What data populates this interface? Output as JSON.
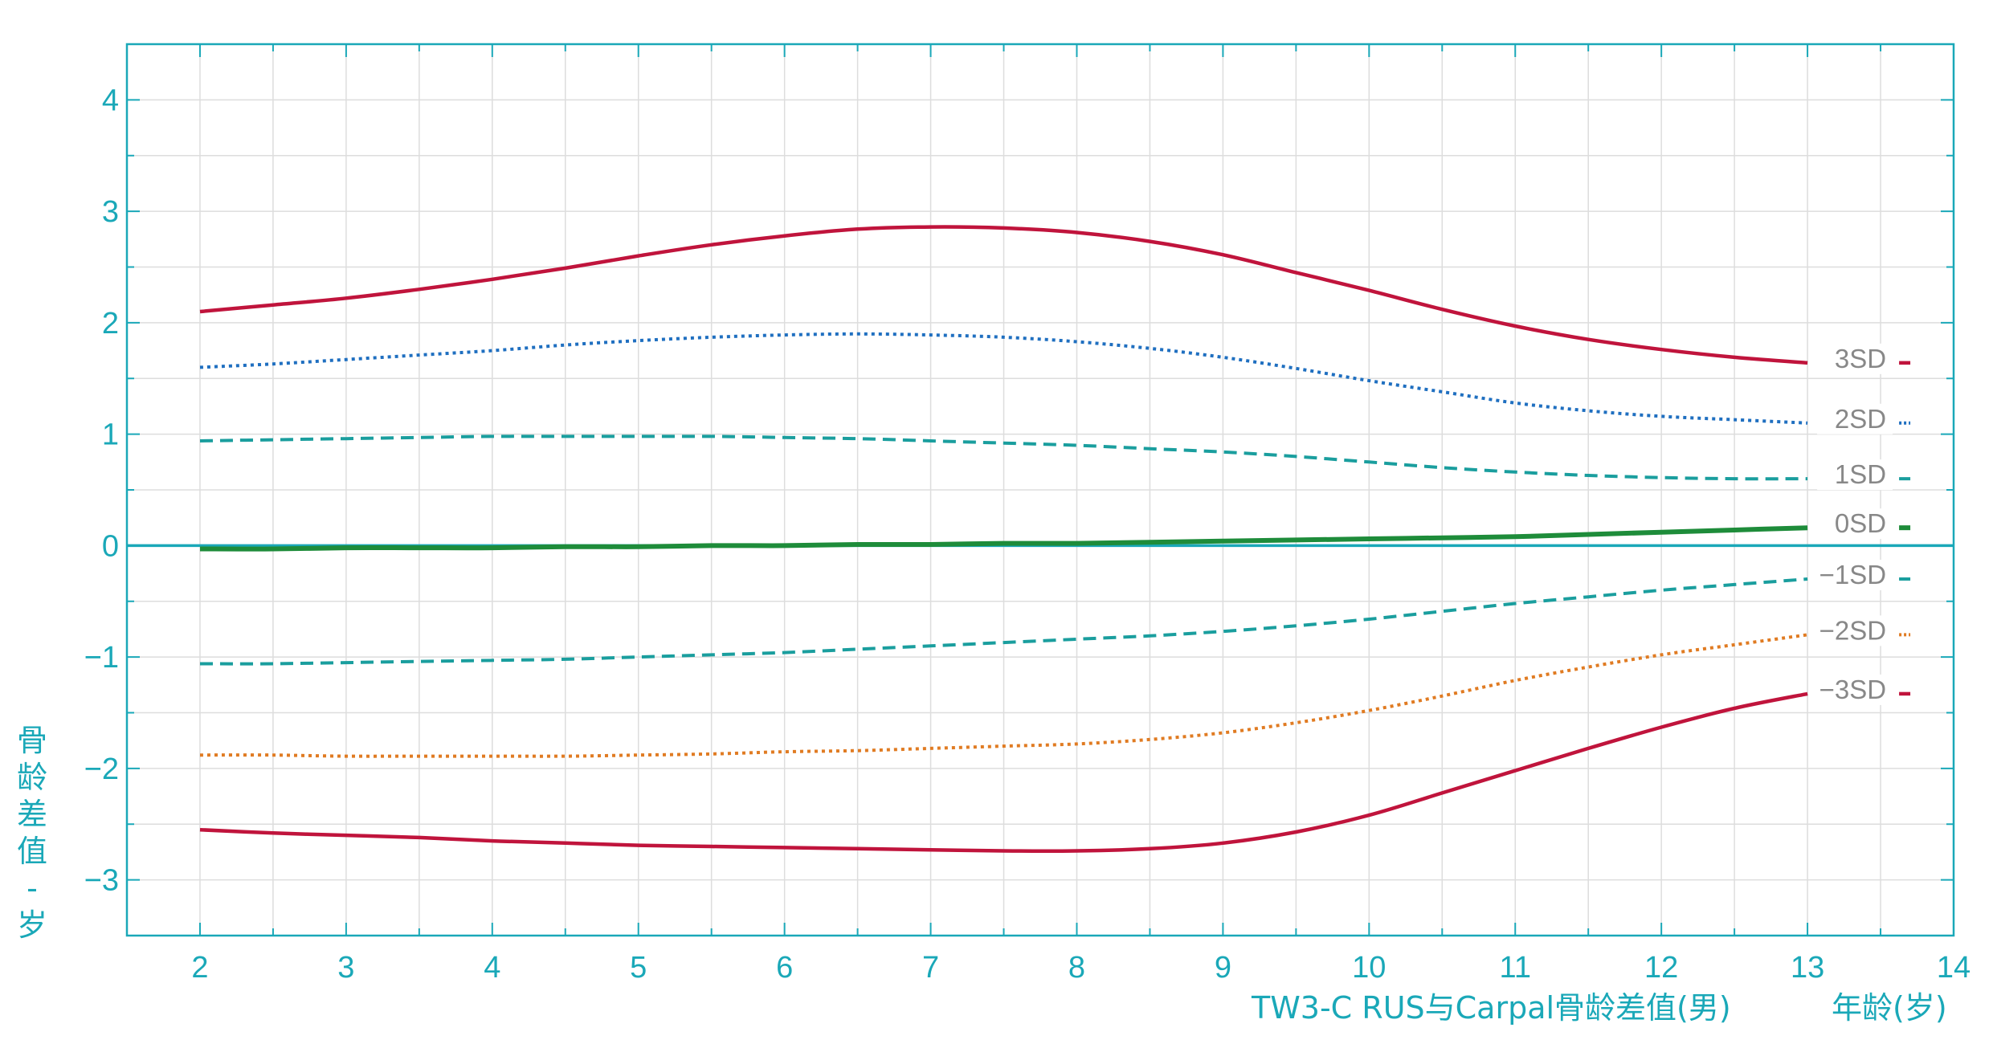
{
  "colors": {
    "axis": "#1aa8b8",
    "grid": "#dddddd",
    "zero_line": "#1aa8b8",
    "sd_label": "#888888",
    "sd3": "#c0143c",
    "sd2_upper": "#1f6fc0",
    "sd1": "#1a9e9e",
    "sd0": "#1e8c3a",
    "sd2_lower": "#e07b22"
  },
  "captions": {
    "title": "TW3-C RUS与Carpal骨龄差值(男)",
    "xlabel": "年龄(岁)",
    "ylabel_chars": [
      "骨",
      "龄",
      "差",
      "值",
      "-",
      "岁"
    ]
  },
  "chart_data": {
    "type": "line",
    "title": "TW3-C RUS与Carpal骨龄差值(男)",
    "xlabel": "年龄(岁)",
    "ylabel": "骨龄差值 - 岁",
    "xlim": [
      1.5,
      14
    ],
    "ylim": [
      -3.5,
      4.5
    ],
    "x_ticks": [
      2,
      3,
      4,
      5,
      6,
      7,
      8,
      9,
      10,
      11,
      12,
      13,
      14
    ],
    "y_ticks": [
      4,
      3,
      2,
      1,
      0,
      -1,
      -2,
      -3
    ],
    "y_tick_labels": [
      "4",
      "3",
      "2",
      "1",
      "0",
      "−1",
      "−2",
      "−3"
    ],
    "grid": true,
    "legend_position": "right-end",
    "x": [
      2,
      2.5,
      3,
      3.5,
      4,
      4.5,
      5,
      5.5,
      6,
      6.5,
      7,
      7.5,
      8,
      8.5,
      9,
      9.5,
      10,
      10.5,
      11,
      11.5,
      12,
      12.5,
      13
    ],
    "series": [
      {
        "name": "3SD",
        "label": "3SD",
        "color_key": "sd3",
        "dash": "solid",
        "width": 4.5,
        "values": [
          2.1,
          2.16,
          2.22,
          2.3,
          2.39,
          2.49,
          2.6,
          2.7,
          2.78,
          2.84,
          2.86,
          2.85,
          2.81,
          2.73,
          2.61,
          2.45,
          2.29,
          2.12,
          1.97,
          1.85,
          1.76,
          1.69,
          1.64
        ]
      },
      {
        "name": "2SD",
        "label": "2SD",
        "color_key": "sd2_upper",
        "dash": "dotted",
        "width": 4,
        "values": [
          1.6,
          1.63,
          1.67,
          1.71,
          1.75,
          1.8,
          1.84,
          1.87,
          1.89,
          1.9,
          1.89,
          1.87,
          1.83,
          1.77,
          1.69,
          1.59,
          1.48,
          1.38,
          1.28,
          1.21,
          1.16,
          1.13,
          1.1
        ]
      },
      {
        "name": "1SD",
        "label": "1SD",
        "color_key": "sd1",
        "dash": "dashed",
        "width": 4,
        "values": [
          0.94,
          0.95,
          0.96,
          0.97,
          0.98,
          0.98,
          0.98,
          0.98,
          0.97,
          0.96,
          0.94,
          0.92,
          0.9,
          0.87,
          0.84,
          0.8,
          0.75,
          0.7,
          0.66,
          0.63,
          0.61,
          0.6,
          0.6
        ]
      },
      {
        "name": "0SD",
        "label": "0SD",
        "color_key": "sd0",
        "dash": "solid",
        "width": 6,
        "values": [
          -0.03,
          -0.03,
          -0.02,
          -0.02,
          -0.02,
          -0.01,
          -0.01,
          0.0,
          0.0,
          0.01,
          0.01,
          0.02,
          0.02,
          0.03,
          0.04,
          0.05,
          0.06,
          0.07,
          0.08,
          0.1,
          0.12,
          0.14,
          0.16
        ]
      },
      {
        "name": "-1SD",
        "label": "−1SD",
        "color_key": "sd1",
        "dash": "dashed",
        "width": 4,
        "values": [
          -1.06,
          -1.06,
          -1.05,
          -1.04,
          -1.03,
          -1.02,
          -1.0,
          -0.98,
          -0.96,
          -0.93,
          -0.9,
          -0.87,
          -0.84,
          -0.81,
          -0.77,
          -0.72,
          -0.66,
          -0.59,
          -0.52,
          -0.46,
          -0.4,
          -0.35,
          -0.3
        ]
      },
      {
        "name": "-2SD",
        "label": "−2SD",
        "color_key": "sd2_lower",
        "dash": "dotted",
        "width": 4,
        "values": [
          -1.88,
          -1.88,
          -1.89,
          -1.89,
          -1.89,
          -1.89,
          -1.88,
          -1.87,
          -1.85,
          -1.84,
          -1.82,
          -1.8,
          -1.78,
          -1.74,
          -1.68,
          -1.59,
          -1.48,
          -1.35,
          -1.21,
          -1.09,
          -0.98,
          -0.89,
          -0.8
        ]
      },
      {
        "name": "-3SD",
        "label": "−3SD",
        "color_key": "sd3",
        "dash": "solid",
        "width": 4.5,
        "values": [
          -2.55,
          -2.58,
          -2.6,
          -2.62,
          -2.65,
          -2.67,
          -2.69,
          -2.7,
          -2.71,
          -2.72,
          -2.73,
          -2.74,
          -2.74,
          -2.72,
          -2.67,
          -2.57,
          -2.42,
          -2.22,
          -2.02,
          -1.82,
          -1.63,
          -1.46,
          -1.33
        ]
      }
    ]
  }
}
